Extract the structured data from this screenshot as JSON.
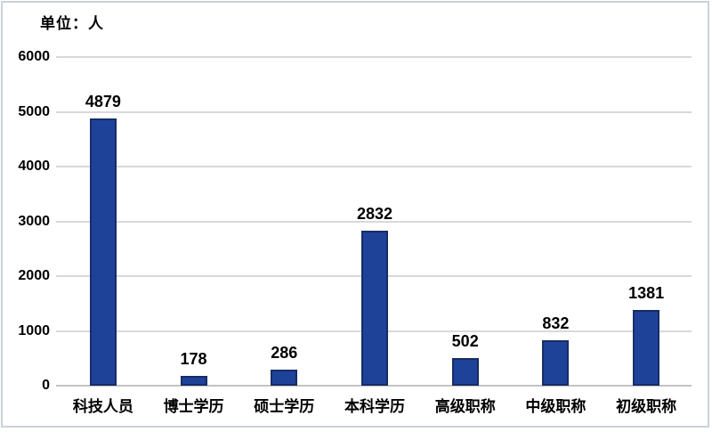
{
  "unit_label": "单位：人",
  "colors": {
    "bar_fill": "#1f4299",
    "bar_border": "#172c66",
    "gridline": "#d9d9d9",
    "axis_line": "#c2c2c2",
    "frame_border": "#ccd2da",
    "text": "#000000",
    "background": "#ffffff"
  },
  "chart_data": {
    "type": "bar",
    "title": "",
    "unit": "单位：人",
    "categories": [
      "科技人员",
      "博士学历",
      "硕士学历",
      "本科学历",
      "高级职称",
      "中级职称",
      "初级职称"
    ],
    "values": [
      4879,
      178,
      286,
      2832,
      502,
      832,
      1381
    ],
    "xlabel": "",
    "ylabel": "",
    "ylim": [
      0,
      6000
    ],
    "yticks": [
      0,
      1000,
      2000,
      3000,
      4000,
      5000,
      6000
    ],
    "grid": true,
    "legend": false,
    "data_labels": true
  }
}
